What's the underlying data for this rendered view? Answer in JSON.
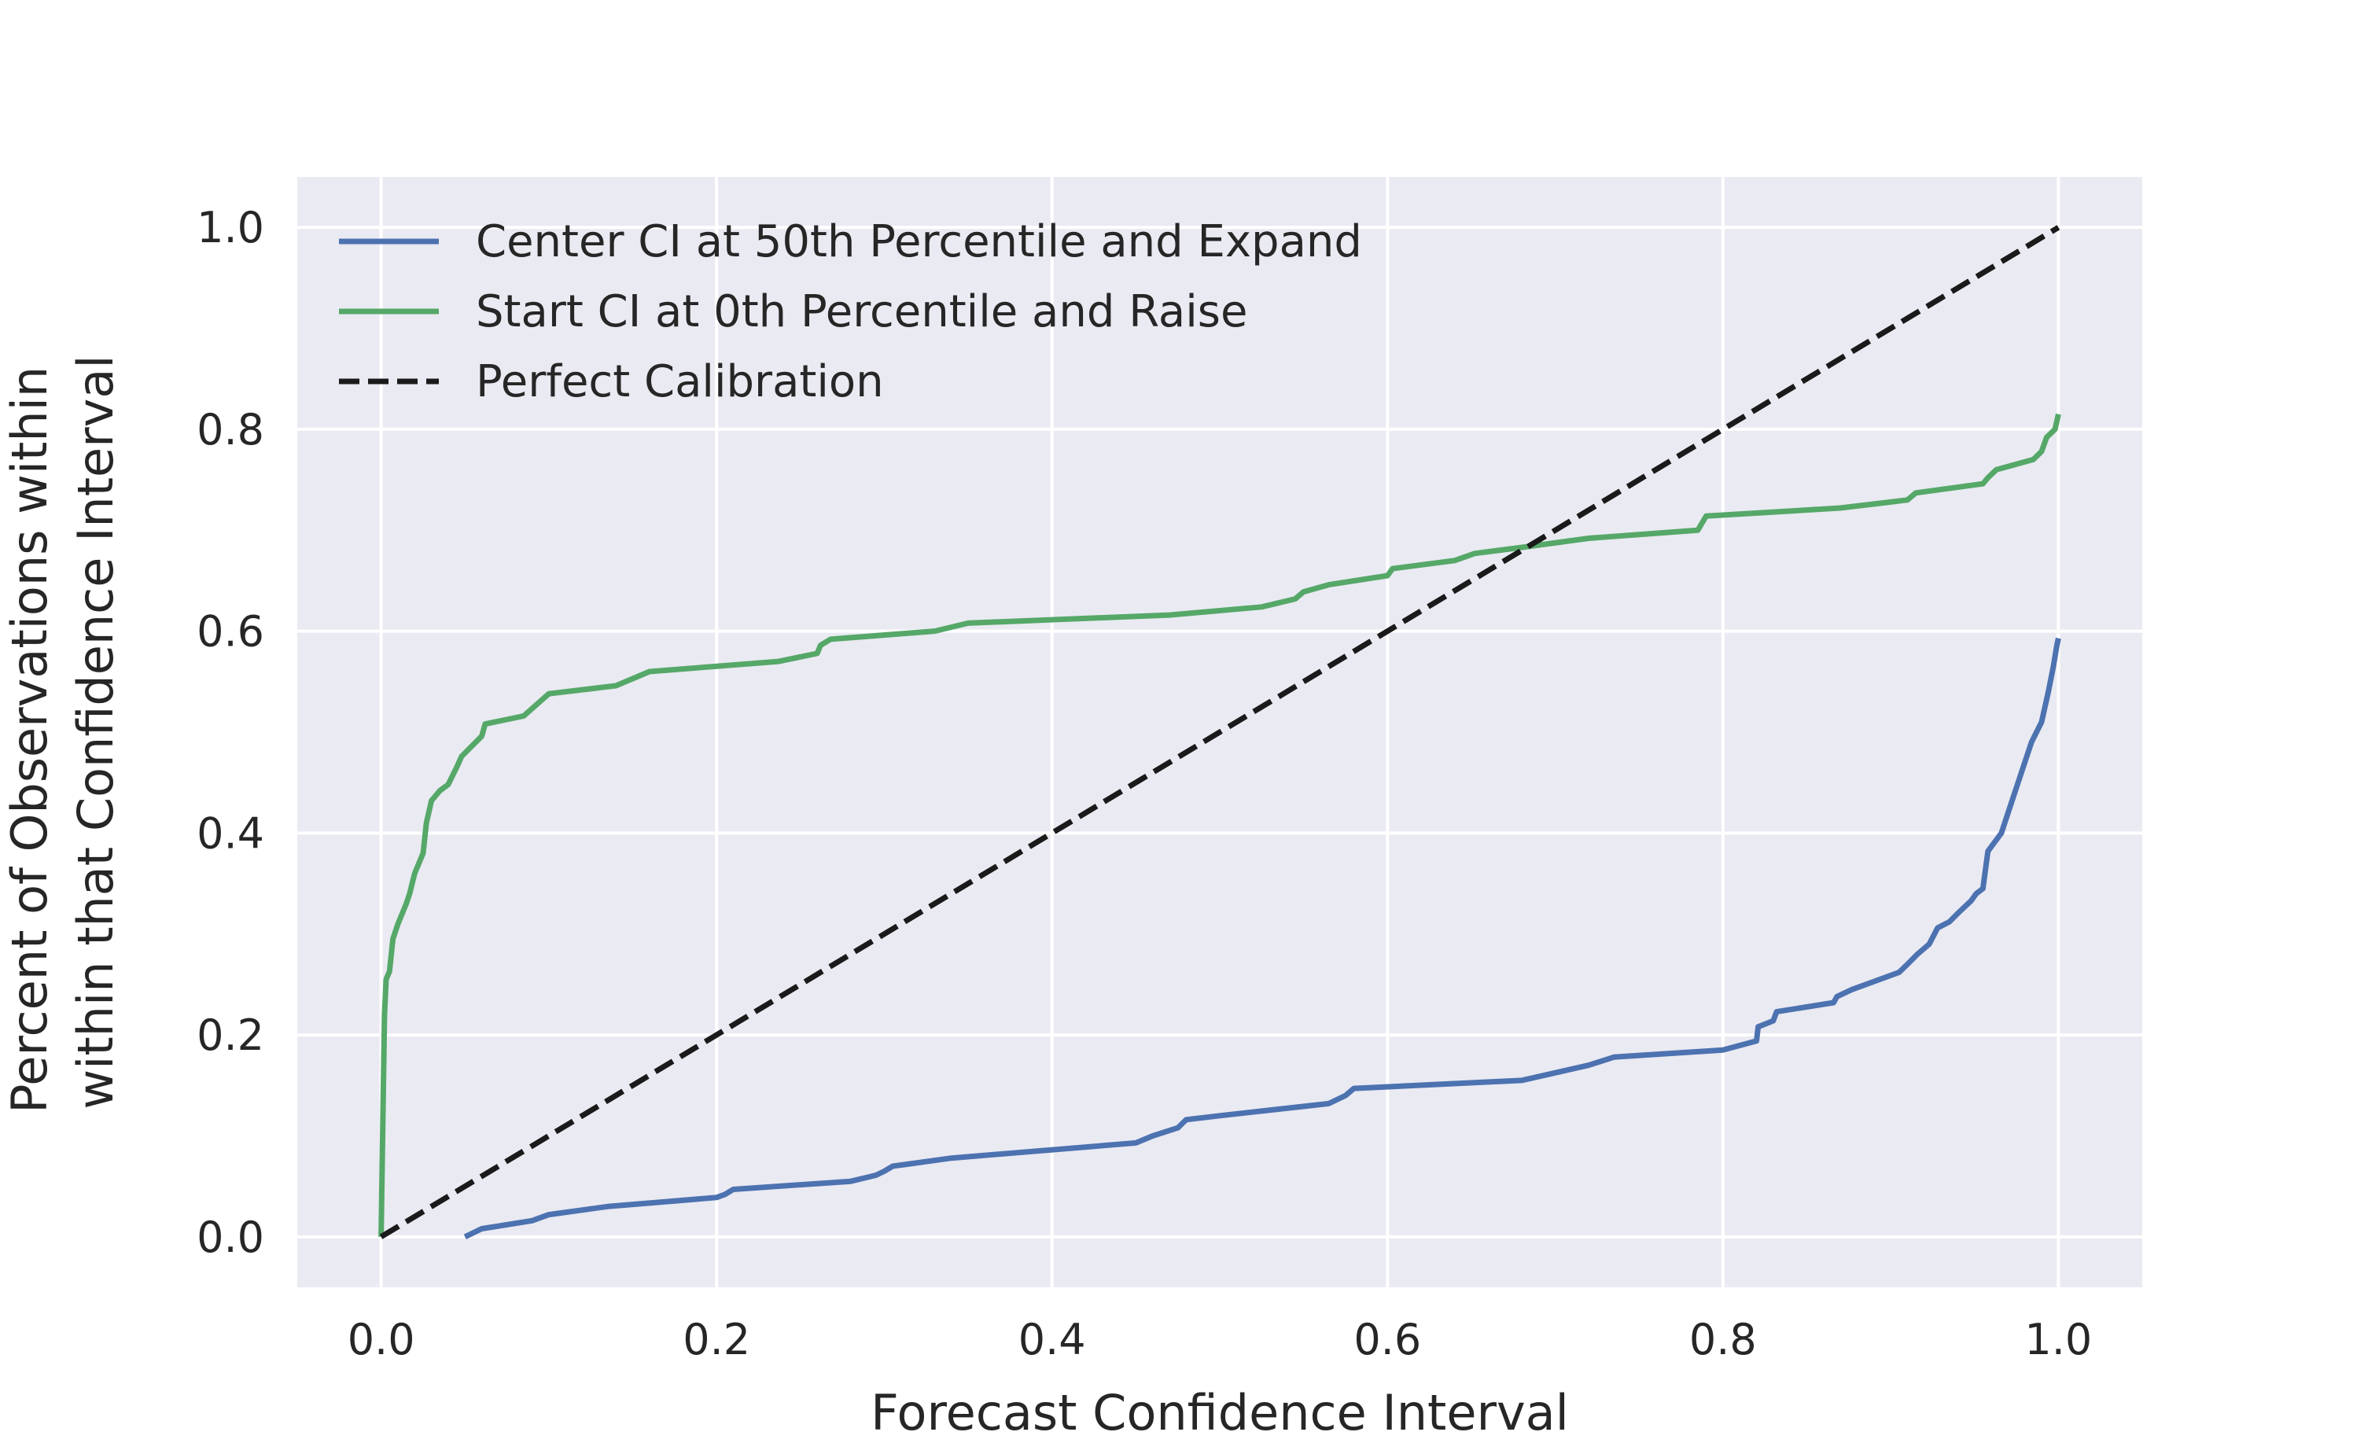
{
  "chart_data": {
    "type": "line",
    "xlabel": "Forecast Confidence Interval",
    "ylabel_lines": [
      "Percent of Observations within",
      "within that Confidence Interval"
    ],
    "xlim": [
      -0.05,
      1.05
    ],
    "ylim": [
      -0.05,
      1.05
    ],
    "x_ticks": [
      0.0,
      0.2,
      0.4,
      0.6,
      0.8,
      1.0
    ],
    "x_tick_labels": [
      "0.0",
      "0.2",
      "0.4",
      "0.6",
      "0.8",
      "1.0"
    ],
    "y_ticks": [
      0.0,
      0.2,
      0.4,
      0.6,
      0.8,
      1.0
    ],
    "y_tick_labels": [
      "0.0",
      "0.2",
      "0.4",
      "0.6",
      "0.8",
      "1.0"
    ],
    "grid": true,
    "legend_position": "top-left",
    "background": "#EAEAF2",
    "series": [
      {
        "name": "Center CI at 50th Percentile and Expand",
        "color": "#4C72B0",
        "style": "solid",
        "x": [
          0.05,
          0.06,
          0.09,
          0.1,
          0.135,
          0.2,
          0.205,
          0.21,
          0.28,
          0.295,
          0.3,
          0.305,
          0.34,
          0.45,
          0.46,
          0.475,
          0.48,
          0.5,
          0.565,
          0.575,
          0.58,
          0.68,
          0.72,
          0.735,
          0.8,
          0.82,
          0.821,
          0.83,
          0.832,
          0.866,
          0.868,
          0.877,
          0.905,
          0.91,
          0.916,
          0.923,
          0.928,
          0.935,
          0.941,
          0.948,
          0.951,
          0.955,
          0.958,
          0.966,
          0.972,
          0.978,
          0.984,
          0.99,
          0.994,
          0.997,
          0.999,
          1.0
        ],
        "y": [
          0.0,
          0.008,
          0.016,
          0.022,
          0.03,
          0.039,
          0.042,
          0.047,
          0.055,
          0.061,
          0.065,
          0.07,
          0.078,
          0.093,
          0.1,
          0.108,
          0.116,
          0.12,
          0.132,
          0.14,
          0.147,
          0.155,
          0.17,
          0.178,
          0.185,
          0.194,
          0.208,
          0.214,
          0.223,
          0.232,
          0.238,
          0.245,
          0.262,
          0.27,
          0.28,
          0.29,
          0.306,
          0.312,
          0.322,
          0.333,
          0.34,
          0.345,
          0.382,
          0.4,
          0.43,
          0.46,
          0.49,
          0.51,
          0.54,
          0.565,
          0.585,
          0.593
        ]
      },
      {
        "name": "Start CI at 0th Percentile and Raise",
        "color": "#55A868",
        "style": "solid",
        "x": [
          0.0,
          0.002,
          0.003,
          0.005,
          0.007,
          0.01,
          0.015,
          0.017,
          0.02,
          0.025,
          0.027,
          0.03,
          0.035,
          0.04,
          0.045,
          0.048,
          0.06,
          0.062,
          0.085,
          0.1,
          0.14,
          0.16,
          0.237,
          0.26,
          0.262,
          0.268,
          0.33,
          0.35,
          0.47,
          0.525,
          0.545,
          0.55,
          0.565,
          0.6,
          0.603,
          0.64,
          0.652,
          0.68,
          0.72,
          0.785,
          0.79,
          0.87,
          0.91,
          0.915,
          0.955,
          0.958,
          0.963,
          0.985,
          0.99,
          0.993,
          0.998,
          1.0
        ],
        "y": [
          0.0,
          0.22,
          0.255,
          0.263,
          0.295,
          0.31,
          0.33,
          0.34,
          0.36,
          0.38,
          0.41,
          0.432,
          0.442,
          0.448,
          0.465,
          0.476,
          0.496,
          0.508,
          0.516,
          0.538,
          0.546,
          0.56,
          0.57,
          0.578,
          0.586,
          0.592,
          0.6,
          0.608,
          0.616,
          0.624,
          0.632,
          0.639,
          0.646,
          0.655,
          0.662,
          0.67,
          0.677,
          0.683,
          0.692,
          0.7,
          0.714,
          0.722,
          0.73,
          0.737,
          0.746,
          0.752,
          0.76,
          0.77,
          0.778,
          0.792,
          0.8,
          0.815
        ]
      },
      {
        "name": "Perfect Calibration",
        "color": "#1A1A1A",
        "style": "dashed",
        "x": [
          0.0,
          1.0
        ],
        "y": [
          0.0,
          1.0
        ]
      }
    ]
  }
}
